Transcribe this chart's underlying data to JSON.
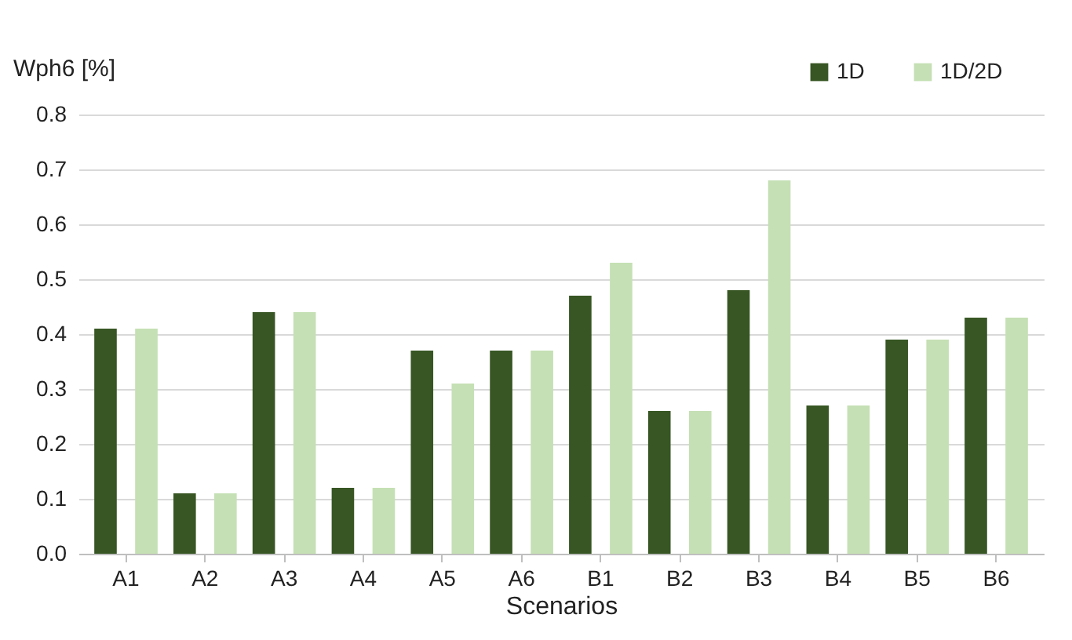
{
  "chart_data": {
    "type": "bar",
    "ylabel": "Wph6 [%]",
    "xlabel": "Scenarios",
    "categories": [
      "A1",
      "A2",
      "A3",
      "A4",
      "A5",
      "A6",
      "B1",
      "B2",
      "B3",
      "B4",
      "B5",
      "B6"
    ],
    "series": [
      {
        "name": "1D",
        "color": "#375623",
        "values": [
          0.41,
          0.11,
          0.44,
          0.12,
          0.37,
          0.37,
          0.47,
          0.26,
          0.48,
          0.27,
          0.39,
          0.43
        ]
      },
      {
        "name": "1D/2D",
        "color": "#c5e0b4",
        "values": [
          0.41,
          0.11,
          0.44,
          0.12,
          0.31,
          0.37,
          0.53,
          0.26,
          0.68,
          0.27,
          0.39,
          0.43
        ]
      }
    ],
    "ylim": [
      0,
      0.8
    ],
    "yticks": [
      {
        "value": 0,
        "label": "0.0"
      },
      {
        "value": 0.1,
        "label": "0.1"
      },
      {
        "value": 0.2,
        "label": "0.2"
      },
      {
        "value": 0.3,
        "label": "0.3"
      },
      {
        "value": 0.4,
        "label": "0.4"
      },
      {
        "value": 0.5,
        "label": "0.5"
      },
      {
        "value": 0.6,
        "label": "0.6"
      },
      {
        "value": 0.7,
        "label": "0.7"
      },
      {
        "value": 0.8,
        "label": "0.8"
      }
    ],
    "grid": "y",
    "legend": "top right"
  }
}
